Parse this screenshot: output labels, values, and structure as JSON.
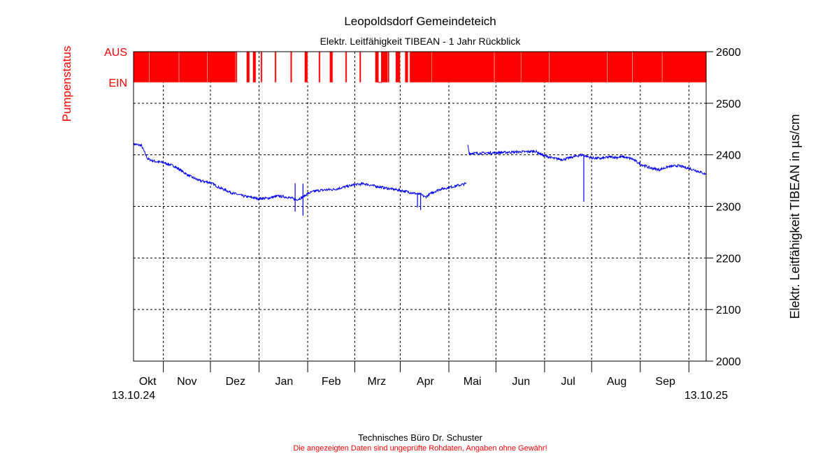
{
  "chart_data": {
    "type": "line",
    "title": "Leopoldsdorf Gemeindeteich",
    "subtitle": "Elektr. Leitfähigkeit TIBEAN - 1 Jahr Rückblick",
    "ylabel": "Elektr. Leitfähigkeit TIBEAN in µs/cm",
    "ylim": [
      2000,
      2600
    ],
    "yticks": [
      2000,
      2100,
      2200,
      2300,
      2400,
      2500,
      2600
    ],
    "ytick_labels": [
      "2000",
      "2100",
      "2200",
      "2300",
      "2400",
      "2500",
      "2600"
    ],
    "xlim_days": [
      0,
      365
    ],
    "x_start_label": "13.10.24",
    "x_end_label": "13.10.25",
    "month_boundaries_days": [
      19,
      49,
      80,
      111,
      141,
      170,
      201,
      231,
      262,
      292,
      323,
      354
    ],
    "month_labels": [
      {
        "label": "Okt",
        "day": 9
      },
      {
        "label": "Nov",
        "day": 34
      },
      {
        "label": "Dez",
        "day": 65
      },
      {
        "label": "Jan",
        "day": 96
      },
      {
        "label": "Feb",
        "day": 126
      },
      {
        "label": "Mrz",
        "day": 155
      },
      {
        "label": "Apr",
        "day": 186
      },
      {
        "label": "Mai",
        "day": 216
      },
      {
        "label": "Jun",
        "day": 247
      },
      {
        "label": "Jul",
        "day": 277
      },
      {
        "label": "Aug",
        "day": 308
      },
      {
        "label": "Sep",
        "day": 339
      }
    ],
    "grid": true,
    "series": [
      {
        "name": "",
        "color": "#0000ff",
        "segments": [
          [
            [
              0,
              2421
            ],
            [
              5,
              2418
            ],
            [
              7,
              2405
            ],
            [
              9,
              2392
            ],
            [
              14,
              2387
            ],
            [
              19,
              2385
            ],
            [
              26,
              2378
            ],
            [
              30,
              2370
            ],
            [
              35,
              2360
            ],
            [
              42,
              2350
            ],
            [
              49,
              2346
            ],
            [
              55,
              2336
            ],
            [
              63,
              2326
            ],
            [
              70,
              2320
            ],
            [
              76,
              2317
            ],
            [
              80,
              2315
            ],
            [
              86,
              2316
            ],
            [
              92,
              2320
            ],
            [
              98,
              2318
            ],
            [
              104,
              2313
            ],
            [
              108,
              2318
            ],
            [
              111,
              2325
            ],
            [
              116,
              2330
            ],
            [
              122,
              2332
            ],
            [
              128,
              2333
            ],
            [
              135,
              2338
            ],
            [
              141,
              2342
            ],
            [
              147,
              2344
            ],
            [
              153,
              2340
            ],
            [
              160,
              2336
            ],
            [
              166,
              2333
            ],
            [
              172,
              2330
            ],
            [
              178,
              2326
            ],
            [
              183,
              2323
            ],
            [
              186,
              2318
            ],
            [
              190,
              2326
            ],
            [
              195,
              2333
            ],
            [
              200,
              2336
            ],
            [
              206,
              2340
            ],
            [
              212,
              2344
            ]
          ],
          [
            [
              213,
              2420
            ],
            [
              214,
              2403
            ],
            [
              220,
              2403
            ],
            [
              230,
              2404
            ],
            [
              240,
              2405
            ],
            [
              250,
              2406
            ],
            [
              256,
              2407
            ],
            [
              262,
              2398
            ],
            [
              268,
              2393
            ],
            [
              274,
              2391
            ],
            [
              280,
              2396
            ],
            [
              286,
              2400
            ],
            [
              289,
              2397
            ],
            [
              292,
              2394
            ],
            [
              298,
              2393
            ],
            [
              304,
              2396
            ],
            [
              308,
              2395
            ],
            [
              312,
              2396
            ],
            [
              318,
              2392
            ],
            [
              323,
              2382
            ],
            [
              329,
              2375
            ],
            [
              335,
              2371
            ],
            [
              341,
              2377
            ],
            [
              347,
              2379
            ],
            [
              354,
              2374
            ],
            [
              360,
              2368
            ],
            [
              365,
              2362
            ]
          ]
        ],
        "spikes": [
          {
            "day": 103,
            "min": 2290,
            "max": 2345
          },
          {
            "day": 108,
            "min": 2282,
            "max": 2344
          },
          {
            "day": 181,
            "min": 2298,
            "max": 2325
          },
          {
            "day": 183,
            "min": 2293,
            "max": 2326
          },
          {
            "day": 287,
            "min": 2309,
            "max": 2400
          }
        ]
      }
    ]
  },
  "pump_status": {
    "axis_title": "Pumpenstatus",
    "label_off": "AUS",
    "label_on": "EIN",
    "color": "#ff0000",
    "on_intervals_days": [
      [
        0,
        10
      ],
      [
        10,
        29
      ],
      [
        29,
        47
      ],
      [
        47,
        65
      ],
      [
        65,
        66
      ],
      [
        72,
        74
      ],
      [
        76,
        78
      ],
      [
        81,
        82
      ],
      [
        90,
        91
      ],
      [
        100,
        101
      ],
      [
        109,
        111
      ],
      [
        118,
        119
      ],
      [
        125,
        127
      ],
      [
        135,
        136
      ],
      [
        144,
        145
      ],
      [
        154,
        156
      ],
      [
        158,
        162
      ],
      [
        162,
        163
      ],
      [
        167,
        170
      ],
      [
        173,
        175
      ],
      [
        176,
        190
      ],
      [
        190,
        230
      ],
      [
        230,
        247
      ],
      [
        247,
        265
      ],
      [
        265,
        302
      ],
      [
        302,
        318
      ],
      [
        318,
        337
      ],
      [
        337,
        365
      ]
    ],
    "off_intervals_days": [
      [
        156,
        158
      ]
    ]
  },
  "footer": {
    "company": "Technisches Büro Dr. Schuster",
    "disclaimer": "Die angezeigten Daten sind ungeprüfte Rohdaten, Angaben ohne Gewähr!"
  }
}
